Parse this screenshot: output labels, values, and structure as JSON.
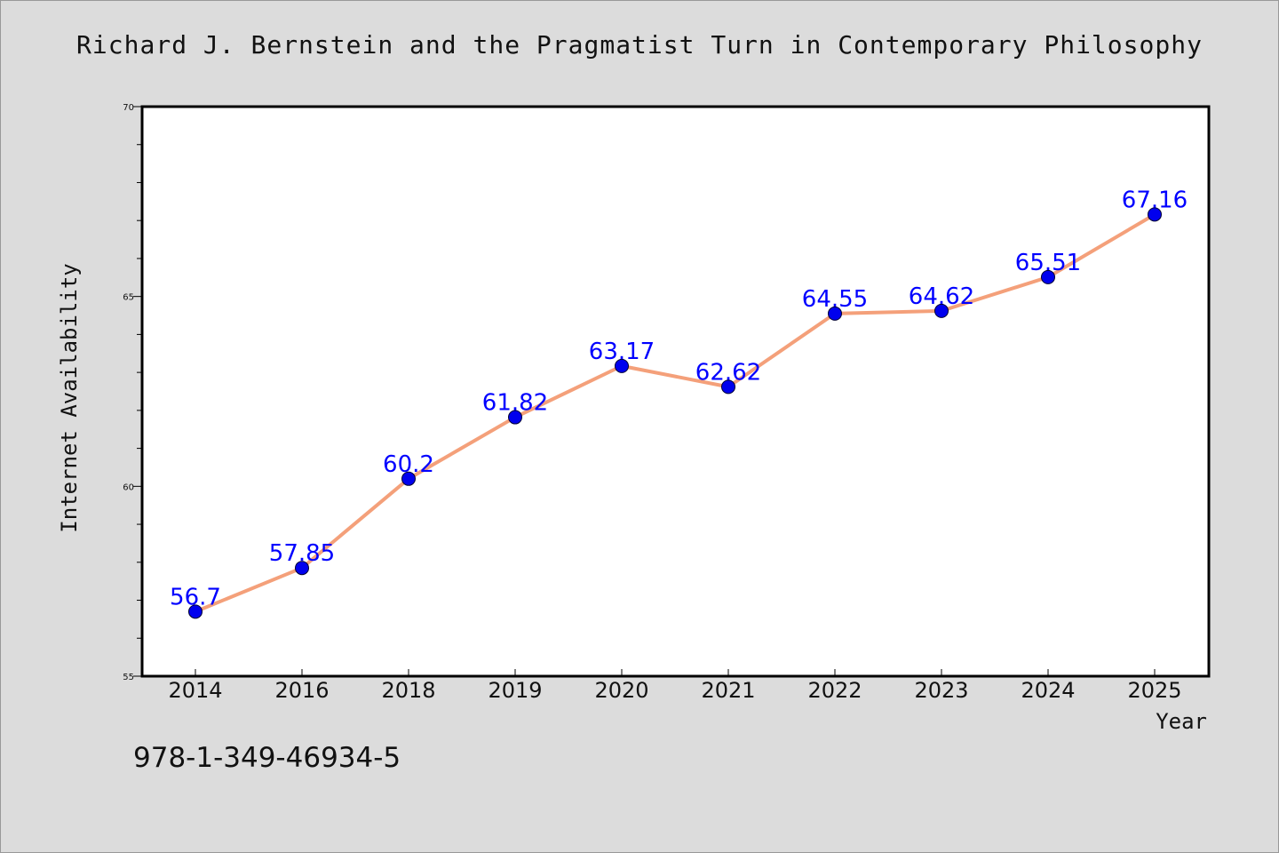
{
  "colors": {
    "background": "#dcdcdc",
    "plot_background": "#ffffff",
    "line": "#f4a07a",
    "marker": "#0000ee",
    "data_label": "#0000ff"
  },
  "footer": {
    "isbn": "978-1-349-46934-5"
  },
  "chart_data": {
    "type": "line",
    "title": "Richard J. Bernstein and the Pragmatist Turn in Contemporary Philosophy",
    "xlabel": "Year",
    "ylabel": "Internet Availability",
    "categories": [
      "2014",
      "2016",
      "2018",
      "2019",
      "2020",
      "2021",
      "2022",
      "2023",
      "2024",
      "2025"
    ],
    "values": [
      56.7,
      57.85,
      60.2,
      61.82,
      63.17,
      62.62,
      64.55,
      64.62,
      65.51,
      67.16
    ],
    "data_labels": [
      "56.7",
      "57.85",
      "60.2",
      "61.82",
      "63.17",
      "62.62",
      "64.55",
      "64.62",
      "65.51",
      "67.16"
    ],
    "ylim": [
      55,
      70
    ],
    "y_ticks": [
      55,
      60,
      65,
      70
    ],
    "y_minor_step": 1,
    "grid": false,
    "legend": "none"
  }
}
